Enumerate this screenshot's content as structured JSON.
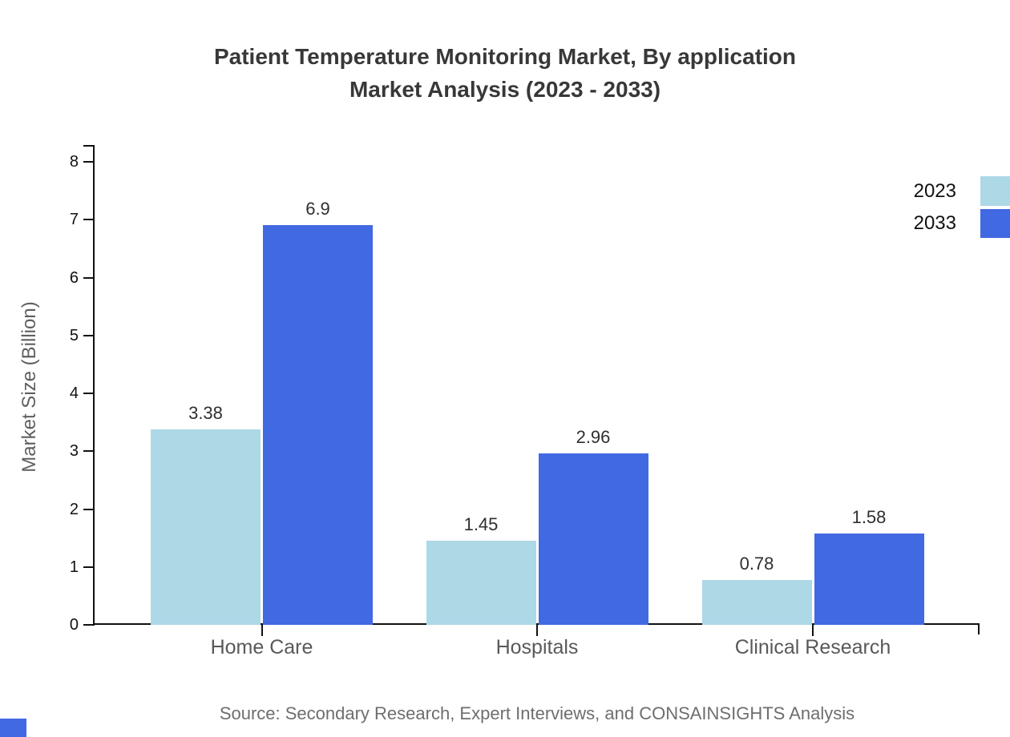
{
  "title": {
    "line1": "Patient Temperature Monitoring Market, By application",
    "line2": "Market Analysis (2023 - 2033)"
  },
  "chart_data": {
    "type": "bar",
    "categories": [
      "Home Care",
      "Hospitals",
      "Clinical Research"
    ],
    "series": [
      {
        "name": "2023",
        "color": "#ADD8E6",
        "values": [
          3.38,
          1.45,
          0.78
        ]
      },
      {
        "name": "2033",
        "color": "#4169E1",
        "values": [
          6.9,
          2.96,
          1.58
        ]
      }
    ],
    "title": "Patient Temperature Monitoring Market, By application Market Analysis (2023 - 2033)",
    "xlabel": "",
    "ylabel": "Market Size (Billion)",
    "ylim": [
      0,
      8
    ],
    "yticks": [
      0,
      1,
      2,
      3,
      4,
      5,
      6,
      7,
      8
    ],
    "grid": false,
    "legend_position": "top-right",
    "bar_value_labels": [
      "3.38",
      "1.45",
      "0.78",
      "6.9",
      "2.96",
      "1.58"
    ]
  },
  "legend": {
    "items": [
      {
        "label": "2023",
        "color": "#ADD8E6"
      },
      {
        "label": "2033",
        "color": "#4169E1"
      }
    ]
  },
  "source": "Source: Secondary Research, Expert Interviews, and CONSAINSIGHTS Analysis",
  "colors": {
    "axis": "#111111",
    "title_text": "#383838",
    "category_text": "#595959",
    "ylabel_text": "#5f5f5f",
    "source_text": "#6e6e6e",
    "value_text": "#2f2f2f",
    "corner_mark": "#4169E1"
  }
}
